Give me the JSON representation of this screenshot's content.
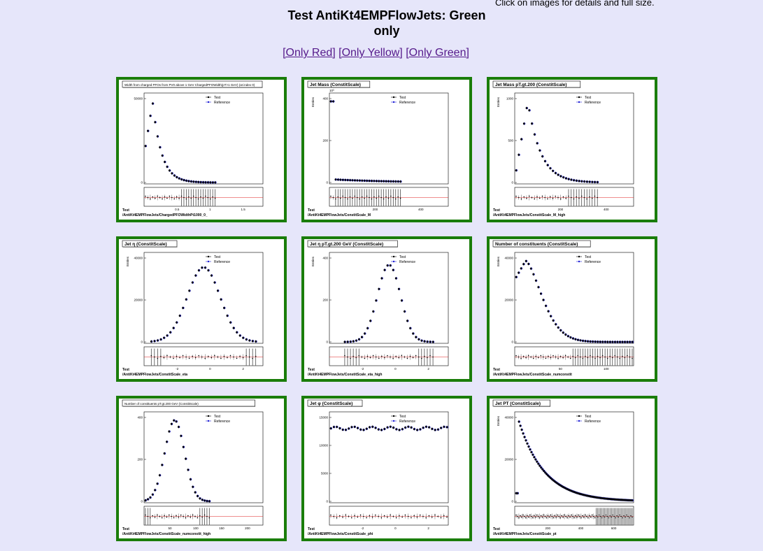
{
  "header": {
    "hint": "Click on images for details and full size.",
    "title": "Test AntiKt4EMPFlowJets: Green only"
  },
  "filters": {
    "only_red": "[Only Red]",
    "only_yellow": "[Only Yellow]",
    "only_green": "[Only Green]"
  },
  "colors": {
    "border_green": "#1a7d0a",
    "background": "#e6e6fa",
    "reference": "#1f1fd6",
    "ratio_line": "#e02020"
  },
  "legend": {
    "test": "Test",
    "reference": "Reference"
  },
  "tiles": [
    {
      "title": "Width from charged PFOs from PV0 above 1 GeV ChargedPFOWidth(pT>1 GeV) (at index 0)",
      "ylabel": "",
      "sample": "Test",
      "path": "/AntiKt4EMPFlowJets/ChargedPFOWidthPt1000_0_",
      "shape": "fall_early",
      "yticks": [
        "50000",
        "0"
      ],
      "exp": "",
      "xticks": [
        "0.5",
        "1",
        "1.5"
      ]
    },
    {
      "title": "Jet Mass (ConstitScale)",
      "ylabel": "Entries",
      "sample": "Test",
      "path": "/AntiKt4EMPFlowJets/ConstitScale_M",
      "shape": "spike",
      "yticks": [
        "400",
        "200",
        "0"
      ],
      "exp": "10³",
      "xticks": [
        "200",
        "400"
      ]
    },
    {
      "title": "Jet Mass pT.gt.200 (ConstitScale)",
      "ylabel": "Entries",
      "sample": "Test",
      "path": "/AntiKt4EMPFlowJets/ConstitScale_M_high",
      "shape": "fall_mid",
      "yticks": [
        "1000",
        "500",
        "0"
      ],
      "exp": "",
      "xticks": [
        "200",
        "400"
      ]
    },
    {
      "title": "Jet η (ConstitScale)",
      "ylabel": "Entries",
      "sample": "Test",
      "path": "/AntiKt4EMPFlowJets/ConstitScale_eta",
      "shape": "gauss_wide",
      "yticks": [
        "40000",
        "20000",
        "0"
      ],
      "exp": "",
      "xticks": [
        "-2",
        "0",
        "2"
      ]
    },
    {
      "title": "Jet η pT.gt.200 GeV (ConstitScale)",
      "ylabel": "Entries",
      "sample": "Test",
      "path": "/AntiKt4EMPFlowJets/ConstitScale_eta_high",
      "shape": "gauss_narrow",
      "yticks": [
        "400",
        "200",
        "0"
      ],
      "exp": "",
      "xticks": [
        "-2",
        "0",
        "2"
      ]
    },
    {
      "title": "Number of constituents (ConstitScale)",
      "ylabel": "Entries",
      "sample": "Test",
      "path": "/AntiKt4EMPFlowJets/ConstitScale_numconstit",
      "shape": "fall_slow",
      "yticks": [
        "40000",
        "20000",
        "0"
      ],
      "exp": "",
      "xticks": [
        "50",
        "100"
      ]
    },
    {
      "title": "Number of constituents pT.gt.200 GeV (ConstitScale)",
      "ylabel": "",
      "sample": "Test",
      "path": "/AntiKt4EMPFlowJets/ConstitScale_numconstit_high",
      "shape": "peak_early",
      "yticks": [
        "400",
        "200",
        "0"
      ],
      "exp": "",
      "xticks": [
        "50",
        "100",
        "150",
        "200"
      ]
    },
    {
      "title": "Jet φ (ConstitScale)",
      "ylabel": "",
      "sample": "Test",
      "path": "/AntiKt4EMPFlowJets/ConstitScale_phi",
      "shape": "flat",
      "yticks": [
        "15000",
        "10000",
        "5000",
        "0"
      ],
      "exp": "",
      "xticks": [
        "-2",
        "0",
        "2"
      ]
    },
    {
      "title": "Jet PT (ConstitScale)",
      "ylabel": "Entries",
      "sample": "Test",
      "path": "/AntiKt4EMPFlowJets/ConstitScale_pt",
      "shape": "exp_tail",
      "yticks": [
        "40000",
        "20000",
        "0"
      ],
      "exp": "",
      "xticks": [
        "200",
        "400",
        "600"
      ]
    }
  ]
}
